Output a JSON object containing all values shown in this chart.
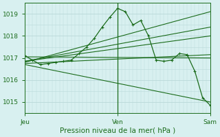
{
  "bg_color": "#d8f0f0",
  "grid_color": "#b8d8d8",
  "line_color": "#1a6b1a",
  "title": "Pression niveau de la mer( hPa )",
  "ylim": [
    1014.5,
    1019.5
  ],
  "yticks": [
    1015,
    1016,
    1017,
    1018,
    1019
  ],
  "xtick_labels": [
    "Jeu",
    "Ven",
    "Sam"
  ],
  "xtick_positions": [
    0,
    24,
    48
  ],
  "vline_x": 24,
  "main_series": [
    [
      0,
      1017.1
    ],
    [
      2,
      1016.9
    ],
    [
      4,
      1016.7
    ],
    [
      6,
      1016.75
    ],
    [
      8,
      1016.8
    ],
    [
      10,
      1016.85
    ],
    [
      12,
      1016.9
    ],
    [
      14,
      1017.2
    ],
    [
      16,
      1017.5
    ],
    [
      18,
      1017.9
    ],
    [
      20,
      1018.4
    ],
    [
      22,
      1018.85
    ],
    [
      24,
      1019.25
    ],
    [
      26,
      1019.1
    ],
    [
      28,
      1018.5
    ],
    [
      30,
      1018.7
    ],
    [
      32,
      1018.0
    ],
    [
      34,
      1016.9
    ],
    [
      36,
      1016.85
    ],
    [
      38,
      1016.9
    ],
    [
      40,
      1017.2
    ],
    [
      42,
      1017.15
    ],
    [
      44,
      1016.4
    ],
    [
      46,
      1015.2
    ],
    [
      48,
      1014.85
    ]
  ],
  "straight_lines": [
    [
      [
        0,
        1017.05
      ],
      [
        48,
        1017.0
      ]
    ],
    [
      [
        0,
        1016.85
      ],
      [
        48,
        1018.4
      ]
    ],
    [
      [
        0,
        1016.8
      ],
      [
        48,
        1019.1
      ]
    ],
    [
      [
        0,
        1016.85
      ],
      [
        48,
        1018.0
      ]
    ],
    [
      [
        0,
        1016.75
      ],
      [
        48,
        1017.15
      ]
    ],
    [
      [
        0,
        1016.7
      ],
      [
        48,
        1015.0
      ]
    ]
  ]
}
